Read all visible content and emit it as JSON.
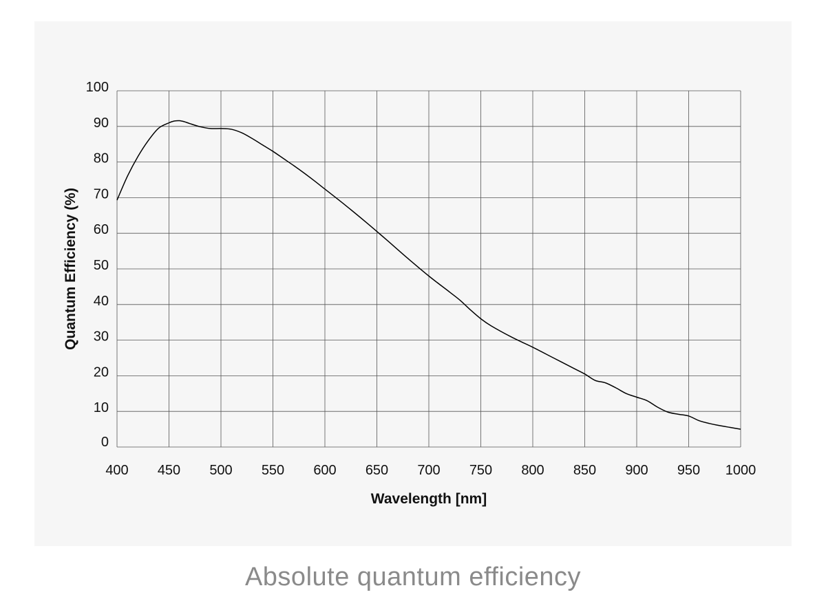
{
  "caption": "Absolute quantum efficiency",
  "chart_data": {
    "type": "line",
    "title": "",
    "xlabel": "Wavelength [nm]",
    "ylabel": "Quantum Efficiency (%)",
    "xlim": [
      400,
      1000
    ],
    "ylim": [
      0,
      100
    ],
    "x_ticks": [
      400,
      450,
      500,
      550,
      600,
      650,
      700,
      750,
      800,
      850,
      900,
      950,
      1000
    ],
    "y_ticks": [
      0,
      10,
      20,
      30,
      40,
      50,
      60,
      70,
      80,
      90,
      100
    ],
    "grid": true,
    "line_color": "#000000",
    "series": [
      {
        "x": [
          400,
          410,
          420,
          430,
          440,
          450,
          455,
          460,
          465,
          470,
          480,
          490,
          500,
          510,
          520,
          530,
          540,
          550,
          560,
          570,
          580,
          590,
          600,
          620,
          640,
          650,
          660,
          680,
          700,
          720,
          730,
          740,
          750,
          760,
          780,
          800,
          820,
          840,
          850,
          860,
          870,
          880,
          890,
          900,
          910,
          920,
          930,
          940,
          950,
          960,
          970,
          980,
          990,
          1000
        ],
        "y": [
          69.3,
          76.0,
          81.5,
          86.0,
          89.5,
          91.0,
          91.5,
          91.6,
          91.3,
          90.8,
          89.9,
          89.4,
          89.4,
          89.2,
          88.2,
          86.6,
          84.8,
          83.0,
          81.0,
          79.0,
          76.9,
          74.7,
          72.4,
          67.8,
          63.0,
          60.5,
          58.0,
          52.9,
          48.0,
          43.5,
          41.2,
          38.5,
          36.0,
          34.0,
          30.8,
          28.0,
          25.0,
          22.0,
          20.5,
          18.7,
          18.0,
          16.6,
          15.0,
          14.0,
          13.0,
          11.2,
          9.8,
          9.2,
          8.7,
          7.4,
          6.6,
          6.0,
          5.5,
          5.0
        ]
      }
    ]
  }
}
